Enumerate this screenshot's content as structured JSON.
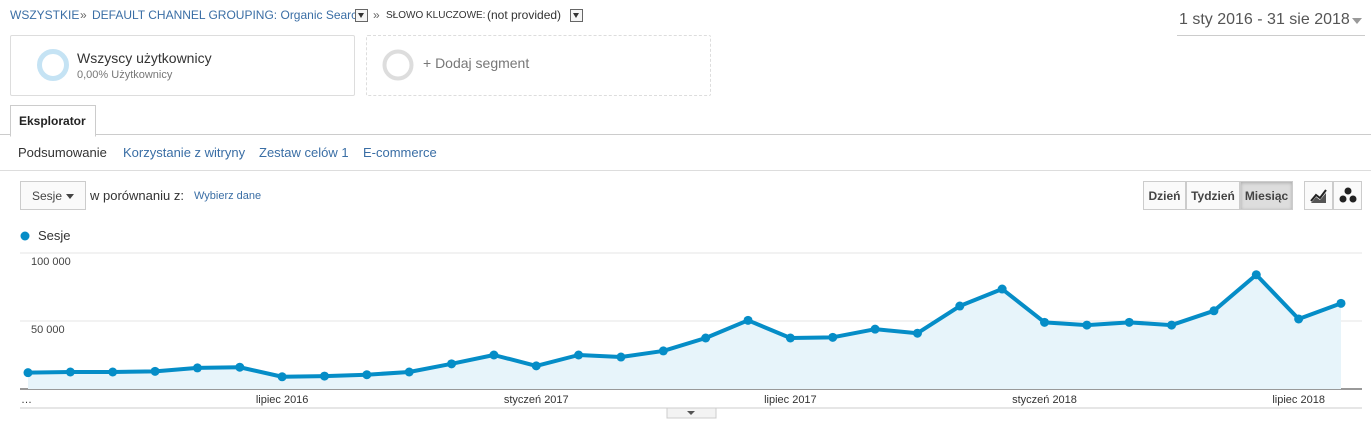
{
  "breadcrumb": {
    "all": "WSZYSTKIE",
    "separator": "»",
    "channel": "DEFAULT CHANNEL GROUPING: Organic Search",
    "keyword_label": "SŁOWO KLUCZOWE:",
    "keyword_value": "(not provided)"
  },
  "date_range": "1 sty 2016 - 31 sie 2018",
  "segments": [
    {
      "title": "Wszyscy użytkownicy",
      "subtitle": "0,00% Użytkownicy"
    },
    {
      "title": "+ Dodaj segment"
    }
  ],
  "tabs": [
    "Eksplorator"
  ],
  "subtabs": [
    "Podsumowanie",
    "Korzystanie z witryny",
    "Zestaw celów 1",
    "E-commerce"
  ],
  "controls": {
    "metric": "Sesje",
    "compare_label": "w porównaniu z:",
    "compare_link": "Wybierz dane",
    "periods": [
      "Dzień",
      "Tydzień",
      "Miesiąc"
    ],
    "active_period": 2
  },
  "chart_data": {
    "type": "line",
    "categories": [
      "…",
      null,
      null,
      null,
      null,
      null,
      "lipiec 2016",
      null,
      null,
      null,
      null,
      null,
      "styczeń 2017",
      null,
      null,
      null,
      null,
      null,
      "lipiec 2017",
      null,
      null,
      null,
      null,
      null,
      "styczeń 2018",
      null,
      null,
      null,
      null,
      null,
      "lipiec 2018",
      null
    ],
    "series": [
      {
        "name": "Sesje",
        "color": "#058dc7",
        "values": [
          12000,
          12500,
          12500,
          13000,
          15500,
          16000,
          9000,
          9500,
          10500,
          12500,
          18500,
          25000,
          17000,
          25000,
          23500,
          28000,
          37500,
          50500,
          37500,
          38000,
          44000,
          41000,
          61000,
          73500,
          49000,
          47000,
          49000,
          47000,
          57500,
          84000,
          51500,
          63000
        ]
      }
    ],
    "ylim": [
      0,
      100000
    ],
    "yticks": [
      {
        "value": 50000,
        "label": "50 000"
      },
      {
        "value": 100000,
        "label": "100 000"
      }
    ],
    "grid": true,
    "area": true
  }
}
